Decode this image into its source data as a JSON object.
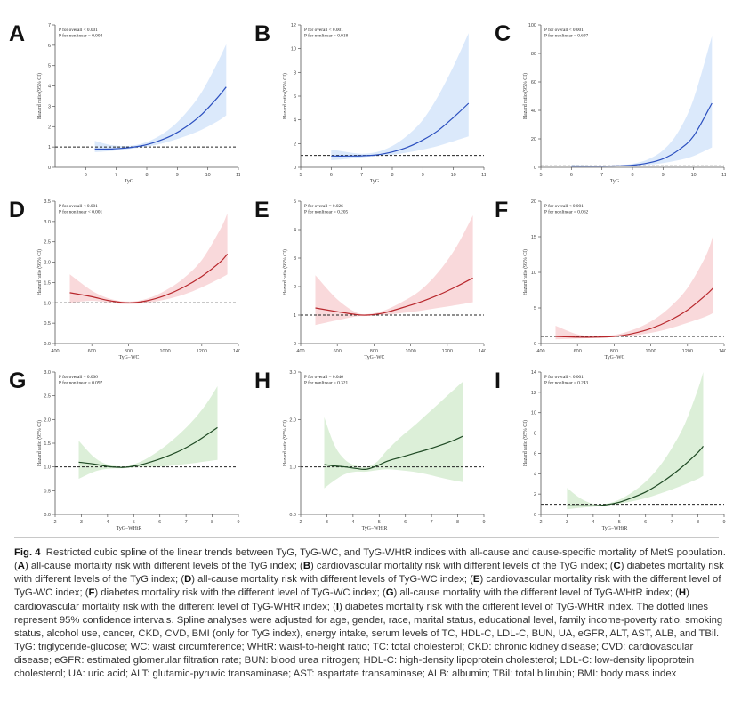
{
  "figure_label": "Fig. 4",
  "caption_segments": [
    {
      "t": "Restricted cubic spline of the linear trends between TyG, TyG-WC, and TyG-WHtR indices with all-cause and cause-specific mortality of MetS population. ("
    },
    {
      "t": "A",
      "b": true
    },
    {
      "t": ") all-cause mortality risk with different levels of the TyG index; ("
    },
    {
      "t": "B",
      "b": true
    },
    {
      "t": ") cardiovascular mortality risk with different levels of the TyG index; ("
    },
    {
      "t": "C",
      "b": true
    },
    {
      "t": ") diabetes mortality risk with different levels of the TyG index; ("
    },
    {
      "t": "D",
      "b": true
    },
    {
      "t": ") all-cause mortality risk with different levels of TyG-WC index; ("
    },
    {
      "t": "E",
      "b": true
    },
    {
      "t": ") cardiovascular mortality risk with the different level of TyG-WC index; ("
    },
    {
      "t": "F",
      "b": true
    },
    {
      "t": ") diabetes mortality risk with the different level of TyG-WC index; ("
    },
    {
      "t": "G",
      "b": true
    },
    {
      "t": ") all-cause mortality with the different level of TyG-WHtR index; ("
    },
    {
      "t": "H",
      "b": true
    },
    {
      "t": ") cardiovascular mortality risk with the different level of TyG-WHtR index; ("
    },
    {
      "t": "I",
      "b": true
    },
    {
      "t": ") diabetes mortality risk with the different level of TyG-WHtR index. The dotted lines represent 95% confidence intervals. Spline analyses were adjusted for age, gender, race, marital status, educational level, family income-poverty ratio, smoking status, alcohol use, cancer, CKD, CVD, BMI (only for TyG index), energy intake, serum levels of TC, HDL-C, LDL-C, BUN, UA, eGFR, ALT, AST, ALB, and TBil. TyG: triglyceride-glucose; WC: waist circumference; WHtR: waist-to-height ratio; TC: total cholesterol; CKD: chronic kidney disease; CVD: cardiovascular disease; eGFR: estimated glomerular filtration rate; BUN: blood urea nitrogen; HDL-C: high-density lipoprotein cholesterol; LDL-C: low-density lipoprotein cholesterol; UA: uric acid; ALT: glutamic-pyruvic transaminase; AST: aspartate transaminase; ALB: albumin; TBil: total bilirubin; BMI: body mass index"
    }
  ],
  "colors": {
    "blue_line": "#2b4fbf",
    "blue_band": "#dbe9fb",
    "red_line": "#b8272c",
    "red_band": "#f9d9db",
    "green_line": "#1f4a24",
    "green_band": "#dcefd8",
    "ref_line": "#222222",
    "axis": "#555555"
  },
  "chart_data": [
    {
      "letter": "A",
      "type": "line",
      "color": "blue",
      "ylabel": "Hazard ratio (95% CI)",
      "xlabel": "TyG",
      "p_overall": "P for overall < 0.001",
      "p_nonlinear": "P for nonlinear = 0.004",
      "xlim": [
        5,
        11
      ],
      "xticks": [
        6,
        7,
        8,
        9,
        10,
        11
      ],
      "ylim": [
        0,
        7
      ],
      "yticks": [
        0,
        1,
        2,
        3,
        4,
        5,
        6,
        7
      ],
      "ref": 1,
      "x": [
        6.3,
        6.8,
        7.3,
        7.8,
        8.3,
        8.8,
        9.3,
        9.8,
        10.3,
        10.6
      ],
      "y": [
        0.9,
        0.9,
        0.95,
        1.05,
        1.25,
        1.55,
        2.0,
        2.6,
        3.4,
        3.95
      ],
      "lower": [
        0.75,
        0.8,
        0.88,
        0.98,
        1.1,
        1.3,
        1.55,
        1.85,
        2.25,
        2.55
      ],
      "upper": [
        1.3,
        1.1,
        1.05,
        1.15,
        1.45,
        1.95,
        2.7,
        3.7,
        5.1,
        6.05
      ]
    },
    {
      "letter": "B",
      "type": "line",
      "color": "blue",
      "ylabel": "Hazard ratio (95% CI)",
      "xlabel": "TyG",
      "p_overall": "P for overall < 0.001",
      "p_nonlinear": "P for nonlinear = 0.018",
      "xlim": [
        5,
        11
      ],
      "xticks": [
        5,
        6,
        7,
        8,
        9,
        10,
        11
      ],
      "ylim": [
        0,
        12
      ],
      "yticks": [
        0,
        2,
        4,
        6,
        8,
        10,
        12
      ],
      "ref": 1,
      "x": [
        6.0,
        6.5,
        7.0,
        7.5,
        8.0,
        8.5,
        9.0,
        9.5,
        10.0,
        10.5
      ],
      "y": [
        0.95,
        0.95,
        0.97,
        1.05,
        1.3,
        1.7,
        2.3,
        3.1,
        4.2,
        5.4
      ],
      "lower": [
        0.6,
        0.7,
        0.85,
        0.95,
        1.05,
        1.25,
        1.5,
        1.8,
        2.2,
        2.6
      ],
      "upper": [
        1.5,
        1.3,
        1.15,
        1.3,
        1.8,
        2.7,
        4.0,
        6.0,
        8.5,
        11.3
      ]
    },
    {
      "letter": "C",
      "type": "line",
      "color": "blue",
      "ylabel": "Hazard ratio (95% CI)",
      "xlabel": "TyG",
      "p_overall": "P for overall < 0.001",
      "p_nonlinear": "P for nonlinear = 0.697",
      "xlim": [
        5,
        11
      ],
      "xticks": [
        5,
        6,
        7,
        8,
        9,
        10,
        11
      ],
      "ylim": [
        0,
        100
      ],
      "yticks": [
        0,
        20,
        40,
        60,
        80,
        100
      ],
      "ref": 1,
      "x": [
        6.0,
        6.5,
        7.0,
        7.5,
        8.0,
        8.5,
        9.0,
        9.5,
        10.0,
        10.6
      ],
      "y": [
        0.8,
        0.85,
        0.9,
        1.0,
        1.5,
        3.0,
        6.0,
        12.0,
        22.0,
        45.0
      ],
      "lower": [
        0.4,
        0.5,
        0.7,
        0.9,
        1.1,
        1.8,
        3.0,
        5.0,
        8.0,
        14.0
      ],
      "upper": [
        1.8,
        1.4,
        1.2,
        1.3,
        2.5,
        5.5,
        12.0,
        25.0,
        48.0,
        92.0
      ]
    },
    {
      "letter": "D",
      "type": "line",
      "color": "red",
      "ylabel": "Hazard ratio (95% CI)",
      "xlabel": "TyG−WC",
      "p_overall": "P for overall < 0.001",
      "p_nonlinear": "P for nonlinear < 0.001",
      "xlim": [
        400,
        1400
      ],
      "xticks": [
        400,
        600,
        800,
        1000,
        1200,
        1400
      ],
      "ylim": [
        0,
        3.5
      ],
      "yticks": [
        0,
        0.5,
        1.0,
        1.5,
        2.0,
        2.5,
        3.0,
        3.5
      ],
      "ref": 1,
      "x": [
        480,
        600,
        700,
        800,
        900,
        1000,
        1100,
        1200,
        1300,
        1340
      ],
      "y": [
        1.25,
        1.15,
        1.05,
        1.0,
        1.05,
        1.18,
        1.38,
        1.65,
        2.0,
        2.2
      ],
      "lower": [
        1.0,
        1.05,
        1.0,
        0.97,
        1.0,
        1.08,
        1.2,
        1.38,
        1.6,
        1.7
      ],
      "upper": [
        1.7,
        1.3,
        1.1,
        1.03,
        1.1,
        1.3,
        1.6,
        2.05,
        2.8,
        3.2
      ]
    },
    {
      "letter": "E",
      "type": "line",
      "color": "red",
      "ylabel": "Hazard ratio (95% CI)",
      "xlabel": "TyG−WC",
      "p_overall": "P for overall = 0.026",
      "p_nonlinear": "P for nonlinear = 0.205",
      "xlim": [
        400,
        1400
      ],
      "xticks": [
        400,
        600,
        800,
        1000,
        1200,
        1400
      ],
      "ylim": [
        0,
        5
      ],
      "yticks": [
        0,
        1,
        2,
        3,
        4,
        5
      ],
      "ref": 1,
      "x": [
        480,
        600,
        700,
        760,
        850,
        950,
        1050,
        1150,
        1250,
        1340
      ],
      "y": [
        1.25,
        1.12,
        1.02,
        1.0,
        1.07,
        1.25,
        1.45,
        1.7,
        2.0,
        2.3
      ],
      "lower": [
        0.65,
        0.82,
        0.95,
        0.97,
        1.0,
        1.07,
        1.15,
        1.25,
        1.35,
        1.45
      ],
      "upper": [
        2.4,
        1.55,
        1.1,
        1.03,
        1.15,
        1.45,
        1.85,
        2.5,
        3.4,
        4.5
      ]
    },
    {
      "letter": "F",
      "type": "line",
      "color": "red",
      "ylabel": "Hazard ratio (95% CI)",
      "xlabel": "TyG−WC",
      "p_overall": "P for overall < 0.001",
      "p_nonlinear": "P for nonlinear = 0.062",
      "xlim": [
        400,
        1400
      ],
      "xticks": [
        400,
        600,
        800,
        1000,
        1200,
        1400
      ],
      "ylim": [
        0,
        20
      ],
      "yticks": [
        0,
        5,
        10,
        15,
        20
      ],
      "ref": 1,
      "x": [
        480,
        600,
        700,
        800,
        900,
        1000,
        1100,
        1200,
        1300,
        1340
      ],
      "y": [
        1.0,
        0.9,
        0.9,
        1.0,
        1.4,
        2.1,
        3.2,
        4.7,
        6.8,
        7.8
      ],
      "lower": [
        0.6,
        0.7,
        0.8,
        0.9,
        1.1,
        1.5,
        2.1,
        2.9,
        3.8,
        4.3
      ],
      "upper": [
        2.5,
        1.3,
        1.05,
        1.2,
        1.9,
        3.1,
        5.0,
        7.8,
        12.3,
        15.2
      ]
    },
    {
      "letter": "G",
      "type": "line",
      "color": "green",
      "ylabel": "Hazard ratio (95% CI)",
      "xlabel": "TyG−WHtR",
      "p_overall": "P for overall = 0.006",
      "p_nonlinear": "P for nonlinear = 0.097",
      "xlim": [
        2,
        9
      ],
      "xticks": [
        2,
        3,
        4,
        5,
        6,
        7,
        8,
        9
      ],
      "ylim": [
        0,
        3.0
      ],
      "yticks": [
        0,
        0.5,
        1.0,
        1.5,
        2.0,
        2.5,
        3.0
      ],
      "ref": 1,
      "x": [
        2.9,
        3.5,
        4.0,
        4.5,
        4.8,
        5.3,
        5.8,
        6.3,
        6.8,
        7.3,
        7.8,
        8.2
      ],
      "y": [
        1.1,
        1.06,
        1.01,
        0.99,
        1.0,
        1.05,
        1.13,
        1.23,
        1.35,
        1.5,
        1.68,
        1.83
      ],
      "lower": [
        0.75,
        0.9,
        0.96,
        0.97,
        0.98,
        1.0,
        1.0,
        1.02,
        1.05,
        1.08,
        1.12,
        1.15
      ],
      "upper": [
        1.55,
        1.2,
        1.05,
        1.01,
        1.02,
        1.12,
        1.28,
        1.48,
        1.72,
        2.0,
        2.35,
        2.7
      ]
    },
    {
      "letter": "H",
      "type": "line",
      "color": "green",
      "ylabel": "Hazard ratio (95% CI)",
      "xlabel": "TyG−WHtR",
      "p_overall": "P for overall = 0.046",
      "p_nonlinear": "P for nonlinear = 0.321",
      "xlim": [
        2,
        9
      ],
      "xticks": [
        2,
        3,
        4,
        5,
        6,
        7,
        8,
        9
      ],
      "ylim": [
        0,
        3
      ],
      "yticks": [
        0,
        1,
        2,
        3
      ],
      "ref": 1,
      "x": [
        2.9,
        3.3,
        3.7,
        4.1,
        4.5,
        4.9,
        5.3,
        5.8,
        6.3,
        6.8,
        7.3,
        7.8,
        8.2
      ],
      "y": [
        1.05,
        1.02,
        1.0,
        0.97,
        0.95,
        1.02,
        1.12,
        1.2,
        1.28,
        1.36,
        1.45,
        1.55,
        1.65
      ],
      "lower": [
        0.55,
        0.72,
        0.85,
        0.9,
        0.9,
        0.93,
        0.95,
        0.93,
        0.9,
        0.85,
        0.78,
        0.72,
        0.68
      ],
      "upper": [
        2.05,
        1.45,
        1.15,
        1.03,
        1.0,
        1.1,
        1.35,
        1.62,
        1.85,
        2.1,
        2.35,
        2.6,
        2.8
      ]
    },
    {
      "letter": "I",
      "type": "line",
      "color": "green",
      "ylabel": "Hazard ratio (95% CI)",
      "xlabel": "TyG−WHtR",
      "p_overall": "P for overall < 0.001",
      "p_nonlinear": "P for nonlinear = 0.243",
      "xlim": [
        2,
        9
      ],
      "xticks": [
        2,
        3,
        4,
        5,
        6,
        7,
        8,
        9
      ],
      "ylim": [
        0,
        14
      ],
      "yticks": [
        0,
        2,
        4,
        6,
        8,
        10,
        12,
        14
      ],
      "ref": 1,
      "x": [
        3.0,
        3.5,
        4.0,
        4.5,
        5.0,
        5.5,
        6.0,
        6.5,
        7.0,
        7.5,
        8.0,
        8.2
      ],
      "y": [
        0.85,
        0.85,
        0.85,
        0.95,
        1.2,
        1.65,
        2.2,
        2.95,
        3.85,
        4.9,
        6.1,
        6.7
      ],
      "lower": [
        0.5,
        0.65,
        0.75,
        0.88,
        1.05,
        1.3,
        1.6,
        2.0,
        2.45,
        2.95,
        3.5,
        3.8
      ],
      "upper": [
        2.6,
        1.6,
        1.05,
        1.05,
        1.45,
        2.2,
        3.2,
        4.6,
        6.5,
        8.9,
        12.3,
        14.0
      ]
    }
  ]
}
